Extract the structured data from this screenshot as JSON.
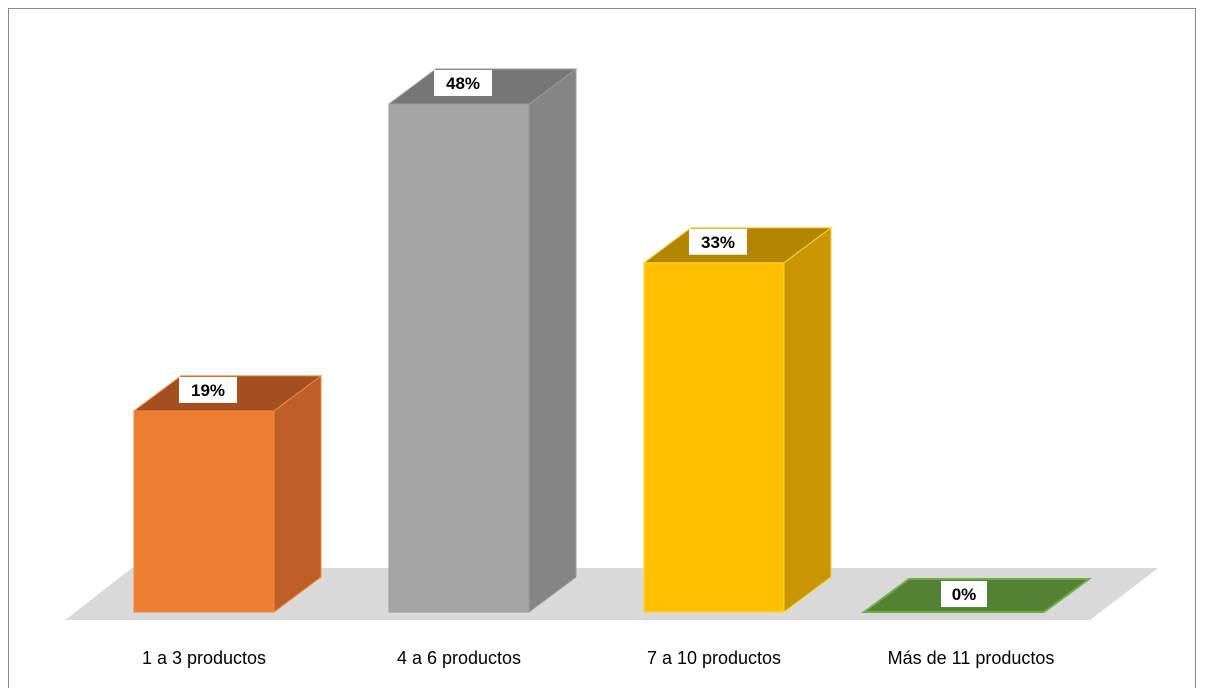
{
  "chart_data": {
    "type": "bar",
    "categories": [
      "1 a 3 productos",
      "4 a 6 productos",
      "7 a 10 productos",
      "Más de 11 productos"
    ],
    "values": [
      19,
      48,
      33,
      0
    ],
    "data_labels": [
      "19%",
      "48%",
      "33%",
      "0%"
    ],
    "title": "",
    "xlabel": "",
    "ylabel": "",
    "ylim": [
      0,
      48
    ],
    "grid": false,
    "legend": "none",
    "style": "3d-column",
    "colors": {
      "front": [
        "#ED7D31",
        "#A5A5A5",
        "#FFC000",
        "#548235"
      ],
      "top": [
        "#A34F1F",
        "#767676",
        "#B38600",
        "#548235"
      ],
      "side": [
        "#BD5F26",
        "#858585",
        "#C89600",
        "#3D6A2A"
      ],
      "edge": [
        "#F08A40",
        "#9A9A9A",
        "#FFD23A",
        "#70AD47"
      ],
      "floor": "#D9D9D9"
    }
  }
}
